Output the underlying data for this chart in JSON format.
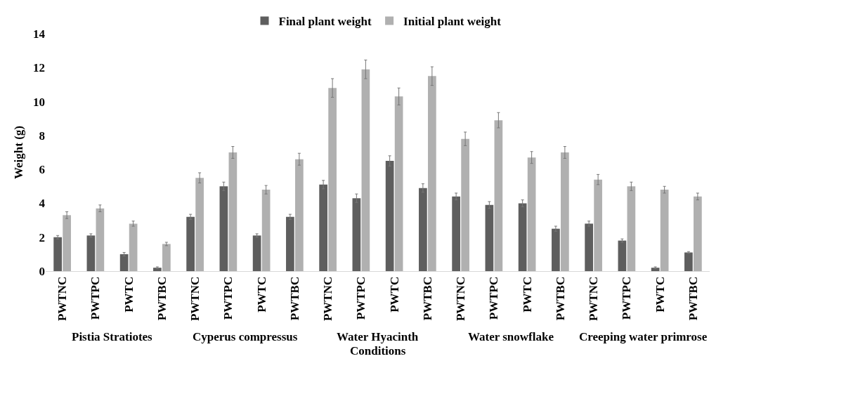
{
  "chart_data": {
    "type": "bar",
    "ylabel": "Weight (g)",
    "xlabel": "Conditions",
    "categories": [
      "PWTNC",
      "PWTPC",
      "PWTC",
      "PWTBC",
      "PWTNC",
      "PWTPC",
      "PWTC",
      "PWTBC",
      "PWTNC",
      "PWTPC",
      "PWTC",
      "PWTBC",
      "PWTNC",
      "PWTPC",
      "PWTC",
      "PWTBC",
      "PWTNC",
      "PWTPC",
      "PWTC",
      "PWTBC"
    ],
    "series": [
      {
        "name": "Final plant weight",
        "color": "#5e5e5e",
        "values": [
          2.0,
          2.1,
          1.0,
          0.2,
          3.2,
          5.0,
          2.1,
          3.2,
          5.1,
          4.3,
          6.5,
          4.9,
          4.4,
          3.9,
          4.0,
          2.5,
          2.8,
          1.8,
          0.2,
          1.1
        ],
        "errors": [
          0.1,
          0.1,
          0.1,
          0.05,
          0.15,
          0.25,
          0.1,
          0.15,
          0.25,
          0.25,
          0.3,
          0.25,
          0.2,
          0.2,
          0.2,
          0.15,
          0.15,
          0.1,
          0.05,
          0.05
        ]
      },
      {
        "name": "Initial plant weight",
        "color": "#b0b0b0",
        "values": [
          3.3,
          3.7,
          2.8,
          1.6,
          5.5,
          7.0,
          4.8,
          6.6,
          10.8,
          11.9,
          10.3,
          11.5,
          7.8,
          8.9,
          6.7,
          7.0,
          5.4,
          5.0,
          4.8,
          4.4
        ],
        "errors": [
          0.2,
          0.2,
          0.15,
          0.1,
          0.3,
          0.35,
          0.25,
          0.35,
          0.55,
          0.55,
          0.5,
          0.55,
          0.4,
          0.45,
          0.35,
          0.35,
          0.3,
          0.25,
          0.2,
          0.2
        ]
      }
    ],
    "annotations": [
      "Pistia Stratiotes",
      "Cyperus compressus",
      "Water Hyacinth",
      "Water snowflake",
      "Creeping water primrose"
    ],
    "ylim": [
      0,
      14
    ],
    "yticks": [
      0,
      2,
      4,
      6,
      8,
      10,
      12,
      14
    ],
    "legend": "top"
  }
}
